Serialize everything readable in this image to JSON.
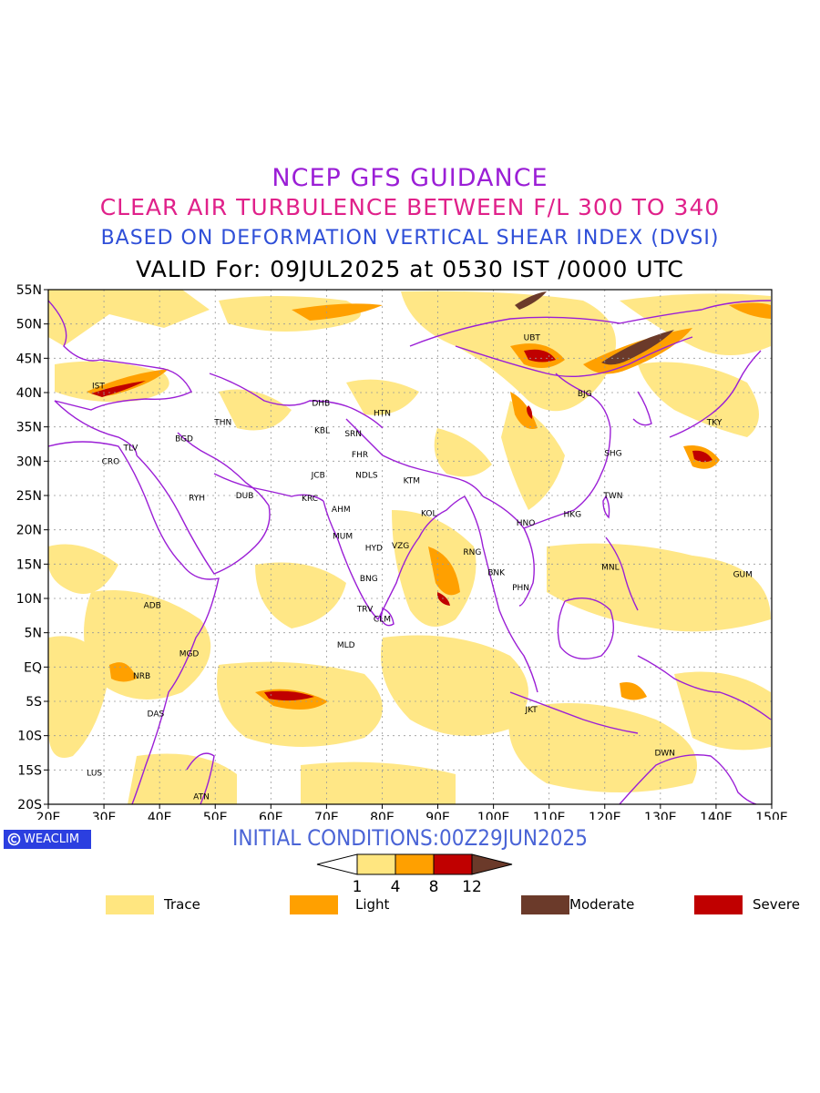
{
  "titles": {
    "line1": "NCEP GFS GUIDANCE",
    "line2": "CLEAR AIR TURBULENCE BETWEEN F/L 300 TO 340",
    "line3": "BASED ON DEFORMATION VERTICAL SHEAR INDEX (DVSI)",
    "line4": "VALID For: 09JUL2025 at 0530 IST /0000 UTC"
  },
  "map": {
    "lat_labels": [
      "55N",
      "50N",
      "45N",
      "40N",
      "35N",
      "30N",
      "25N",
      "20N",
      "15N",
      "10N",
      "5N",
      "EQ",
      "5S",
      "10S",
      "15S",
      "20S"
    ],
    "lon_labels": [
      "20E",
      "30E",
      "40E",
      "50E",
      "60E",
      "70E",
      "80E",
      "90E",
      "100E",
      "110E",
      "120E",
      "130E",
      "140E",
      "150E"
    ],
    "stations": [
      {
        "code": "IST",
        "lon": 29,
        "lat": 41
      },
      {
        "code": "THN",
        "lon": 51.4,
        "lat": 35.7
      },
      {
        "code": "DHB",
        "lon": 69,
        "lat": 38.5
      },
      {
        "code": "HTN",
        "lon": 80,
        "lat": 37
      },
      {
        "code": "KBL",
        "lon": 69.2,
        "lat": 34.5
      },
      {
        "code": "SRN",
        "lon": 74.8,
        "lat": 34
      },
      {
        "code": "BGD",
        "lon": 44.4,
        "lat": 33.3
      },
      {
        "code": "TLV",
        "lon": 34.8,
        "lat": 32
      },
      {
        "code": "CRO",
        "lon": 31.2,
        "lat": 30
      },
      {
        "code": "FHR",
        "lon": 76,
        "lat": 31
      },
      {
        "code": "JCB",
        "lon": 68.5,
        "lat": 28
      },
      {
        "code": "NDLS",
        "lon": 77.2,
        "lat": 28
      },
      {
        "code": "KTM",
        "lon": 85.3,
        "lat": 27.2
      },
      {
        "code": "RYH",
        "lon": 46.7,
        "lat": 24.7
      },
      {
        "code": "DUB",
        "lon": 55.3,
        "lat": 25
      },
      {
        "code": "KRC",
        "lon": 67,
        "lat": 24.6
      },
      {
        "code": "AHM",
        "lon": 72.6,
        "lat": 23
      },
      {
        "code": "KOL",
        "lon": 88.4,
        "lat": 22.4
      },
      {
        "code": "MUM",
        "lon": 72.9,
        "lat": 19.1
      },
      {
        "code": "HYD",
        "lon": 78.5,
        "lat": 17.4
      },
      {
        "code": "VZG",
        "lon": 83.3,
        "lat": 17.7
      },
      {
        "code": "BNG",
        "lon": 77.6,
        "lat": 12.9
      },
      {
        "code": "TRV",
        "lon": 76.9,
        "lat": 8.5
      },
      {
        "code": "CLM",
        "lon": 80,
        "lat": 7
      },
      {
        "code": "MLD",
        "lon": 73.5,
        "lat": 3.2
      },
      {
        "code": "ADB",
        "lon": 38.7,
        "lat": 9
      },
      {
        "code": "MGD",
        "lon": 45.3,
        "lat": 2
      },
      {
        "code": "NRB",
        "lon": 36.8,
        "lat": -1.3
      },
      {
        "code": "DAS",
        "lon": 39.3,
        "lat": -6.8
      },
      {
        "code": "LUS",
        "lon": 28.3,
        "lat": -15.4
      },
      {
        "code": "ATN",
        "lon": 47.5,
        "lat": -18.9
      },
      {
        "code": "UBT",
        "lon": 106.9,
        "lat": 48
      },
      {
        "code": "BJG",
        "lon": 116.4,
        "lat": 39.9
      },
      {
        "code": "TKY",
        "lon": 139.7,
        "lat": 35.7
      },
      {
        "code": "SHG",
        "lon": 121.5,
        "lat": 31.2
      },
      {
        "code": "TWN",
        "lon": 121.5,
        "lat": 25
      },
      {
        "code": "HKG",
        "lon": 114.2,
        "lat": 22.3
      },
      {
        "code": "HNO",
        "lon": 105.8,
        "lat": 21
      },
      {
        "code": "RNG",
        "lon": 96.2,
        "lat": 16.8
      },
      {
        "code": "BNK",
        "lon": 100.5,
        "lat": 13.8
      },
      {
        "code": "PHN",
        "lon": 104.9,
        "lat": 11.6
      },
      {
        "code": "MNL",
        "lon": 121,
        "lat": 14.6
      },
      {
        "code": "GUM",
        "lon": 144.8,
        "lat": 13.5
      },
      {
        "code": "JKT",
        "lon": 106.8,
        "lat": -6.2
      },
      {
        "code": "DWN",
        "lon": 130.8,
        "lat": -12.5
      }
    ]
  },
  "initial_conditions": "INITIAL CONDITIONS:00Z29JUN2025",
  "logo_text": "WEACLIM",
  "colorbar": {
    "ticks": [
      "1",
      "4",
      "8",
      "12"
    ],
    "colors": [
      "#ffe680",
      "#ffa000",
      "#c00000",
      "#6b3a2a"
    ]
  },
  "legend": [
    {
      "label": "Trace",
      "color": "#ffe680"
    },
    {
      "label": "Light",
      "color": "#ffa000"
    },
    {
      "label": "Moderate",
      "color": "#6b3a2a"
    },
    {
      "label": "Severe",
      "color": "#c00000"
    }
  ]
}
